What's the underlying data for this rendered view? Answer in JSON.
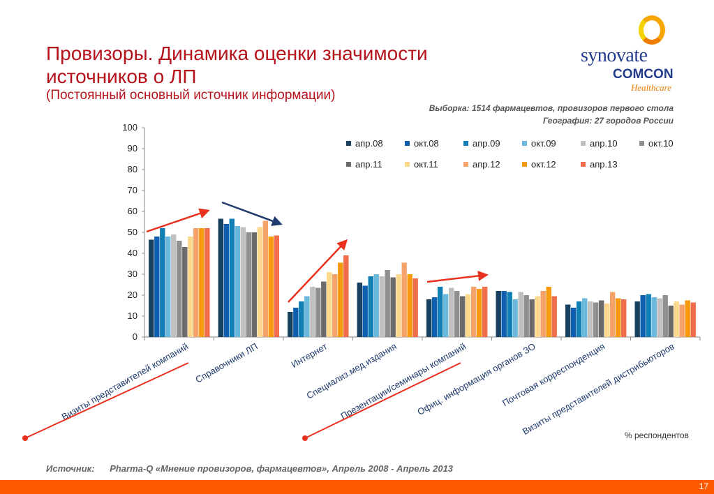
{
  "slide": {
    "title": "Провизоры. Динамика оценки значимости источников о ЛП",
    "subtitle": "(Постоянный основный источник информации)",
    "sample_line1": "Выборка: 1514 фармацевтов, провизоров первого стола",
    "sample_line2": "География: 27 городов России",
    "unit_note": "% респондентов",
    "source_label": "Источник:",
    "source_text": "Pharma-Q «Мнение провизоров, фармацевтов», Апрель 2008 - Апрель 2013",
    "page_number": "17"
  },
  "logo": {
    "word1": "synovate",
    "word2": "COMCON",
    "word3": "Healthcare"
  },
  "colors": {
    "title": "#b5121b",
    "footer": "#ff5a00",
    "arrow_red": "#e8311f",
    "arrow_blue": "#1f3b6e"
  },
  "chart_data": {
    "type": "bar",
    "title": "",
    "xlabel": "",
    "ylabel": "",
    "ylim": [
      0,
      100
    ],
    "yticks": [
      0,
      10,
      20,
      30,
      40,
      50,
      60,
      70,
      80,
      90,
      100
    ],
    "grid": false,
    "legend_position": "top-right",
    "categories": [
      "Визиты представителей компаний",
      "Справочники ЛП",
      "Интернет",
      "Специализ.мед.издания",
      "Презентации/семинары компаний",
      "Офиц. информация органов ЗО",
      "Почтовая корреспонденция",
      "Визиты представителей дистрибьюторов"
    ],
    "series": [
      {
        "name": "апр.08",
        "color": "#17415e",
        "values": [
          46.5,
          56.5,
          12,
          26,
          18,
          22,
          15.5,
          17
        ]
      },
      {
        "name": "окт.08",
        "color": "#0f5fb0",
        "values": [
          48,
          54,
          14,
          24.5,
          19,
          22,
          14,
          20
        ]
      },
      {
        "name": "апр.09",
        "color": "#127fb4",
        "values": [
          52,
          56.5,
          17,
          29,
          24,
          21.5,
          17,
          20.5
        ]
      },
      {
        "name": "окт.09",
        "color": "#6ab8dc",
        "values": [
          48,
          53,
          19.5,
          30,
          20.5,
          18,
          18.5,
          19
        ]
      },
      {
        "name": "апр.10",
        "color": "#c0c0c0",
        "values": [
          49,
          52.5,
          24,
          29,
          23.5,
          21.5,
          17,
          18.5
        ]
      },
      {
        "name": "окт.10",
        "color": "#8f8f8f",
        "values": [
          46,
          50,
          23.5,
          32,
          22,
          20,
          16.5,
          20
        ]
      },
      {
        "name": "апр.11",
        "color": "#6b6b6b",
        "values": [
          43,
          50,
          26.5,
          28.5,
          19.5,
          18,
          17.5,
          15
        ]
      },
      {
        "name": "окт.11",
        "color": "#fcd88c",
        "values": [
          48,
          52.5,
          31,
          30,
          20.5,
          19.5,
          16,
          17
        ]
      },
      {
        "name": "апр.12",
        "color": "#f6a36b",
        "values": [
          52,
          55.5,
          30,
          35.5,
          24,
          22,
          21.5,
          15.5
        ]
      },
      {
        "name": "окт.12",
        "color": "#f89a0f",
        "values": [
          52,
          48,
          35.5,
          30,
          23,
          24,
          18.5,
          17.5
        ]
      },
      {
        "name": "апр.13",
        "color": "#f26d4b",
        "values": [
          52,
          48.5,
          39,
          28,
          24,
          19.5,
          18,
          16.5
        ]
      }
    ]
  }
}
